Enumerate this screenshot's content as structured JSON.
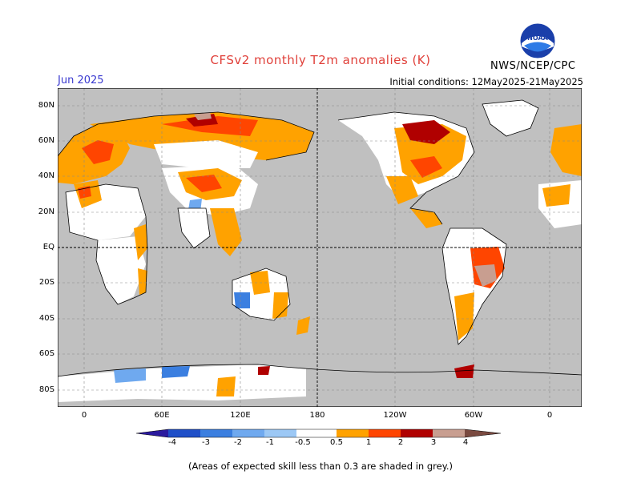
{
  "header": {
    "title": "CFSv2 monthly T2m anomalies (K)",
    "month": "Jun 2025",
    "initial_conditions": "Initial conditions: 12May2025-21May2025",
    "agency": "NWS/NCEP/CPC",
    "logo_text": "NOAA"
  },
  "map": {
    "lat_labels": [
      "80N",
      "60N",
      "40N",
      "20N",
      "EQ",
      "20S",
      "40S",
      "60S",
      "80S"
    ],
    "lon_labels": [
      "0",
      "60E",
      "120E",
      "180",
      "120W",
      "60W",
      "0"
    ],
    "background_color": "#c0c0c0",
    "ocean_note": "grey shading marks low skill"
  },
  "colorbar": {
    "ticks": [
      "-4",
      "-3",
      "-2",
      "-1",
      "-0.5",
      "0.5",
      "1",
      "2",
      "3",
      "4"
    ],
    "colors": [
      "#2b1a9e",
      "#1f4fc8",
      "#3b7fe0",
      "#6fa9ef",
      "#ffffff",
      "#ffa200",
      "#ff4500",
      "#b00000",
      "#c89e90",
      "#7a4a40"
    ]
  },
  "footnote": "(Areas of expected skill less than 0.3 are shaded in grey.)"
}
